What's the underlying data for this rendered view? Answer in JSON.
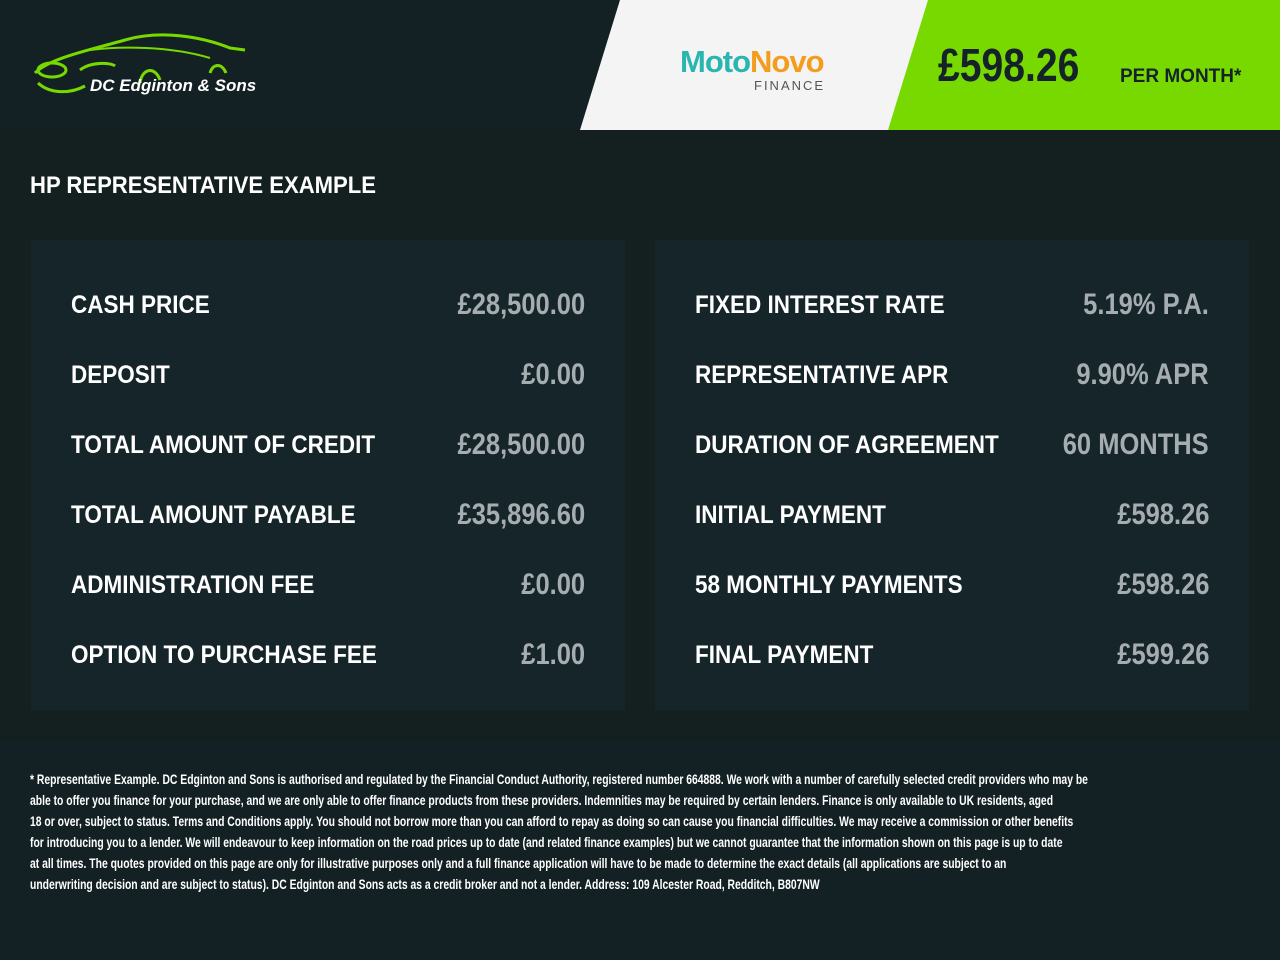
{
  "header": {
    "dealer_logo_text": "DC Edginton & Sons",
    "lender_logo": {
      "part1": "Moto",
      "part2": "Novo",
      "sub": "FINANCE"
    },
    "monthly_price": "£598.26",
    "per_month": "PER MONTH*"
  },
  "colors": {
    "accent": "#77d900",
    "background": "#13201f",
    "panel": "#16252a"
  },
  "title": "HP REPRESENTATIVE EXAMPLE",
  "left": [
    {
      "label": "CASH PRICE",
      "value": "£28,500.00"
    },
    {
      "label": "DEPOSIT",
      "value": "£0.00"
    },
    {
      "label": "TOTAL AMOUNT OF CREDIT",
      "value": "£28,500.00"
    },
    {
      "label": "TOTAL AMOUNT PAYABLE",
      "value": "£35,896.60"
    },
    {
      "label": "ADMINISTRATION FEE",
      "value": "£0.00"
    },
    {
      "label": "OPTION TO PURCHASE FEE",
      "value": "£1.00"
    }
  ],
  "right": [
    {
      "label": "FIXED INTEREST RATE",
      "value": "5.19% P.A."
    },
    {
      "label": "REPRESENTATIVE APR",
      "value": "9.90% APR"
    },
    {
      "label": "DURATION OF AGREEMENT",
      "value": "60 MONTHS"
    },
    {
      "label": "INITIAL PAYMENT",
      "value": "£598.26"
    },
    {
      "label": "58 MONTHLY PAYMENTS",
      "value": "£598.26"
    },
    {
      "label": "FINAL PAYMENT",
      "value": "£599.26"
    }
  ],
  "disclaimer": [
    "* Representative Example. DC Edginton and Sons is authorised and regulated by the Financial Conduct Authority, registered number 664888. We work with a number of carefully selected credit providers who may be",
    "able to offer you finance for your purchase, and we are only able to offer finance products from these providers. Indemnities may be required by certain lenders. Finance is only available to UK residents, aged",
    "18 or over, subject to status. Terms and Conditions apply. You should not borrow more than you can afford to repay as doing so can cause you financial difficulties. We may receive a commission or other benefits",
    "for introducing you to a lender. We will endeavour to keep information on the road prices up to date (and related finance examples) but we cannot guarantee that the information shown on this page is up to date",
    "at all times. The quotes provided on this page are only for illustrative purposes only and a full finance application will have to be made to determine the exact details (all applications are subject to an",
    "underwriting decision and are subject to status). DC Edginton and Sons acts as a credit broker and not a lender. Address: 109 Alcester Road, Redditch, B807NW"
  ]
}
